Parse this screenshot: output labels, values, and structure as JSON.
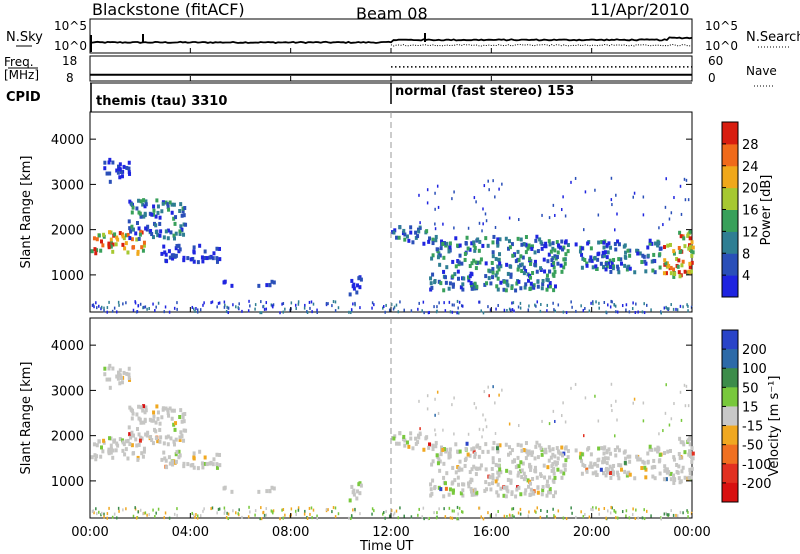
{
  "header": {
    "radar": "Blackstone (fitACF)",
    "beam": "Beam 08",
    "date": "11/Apr/2010"
  },
  "chart_data": [
    {
      "type": "line",
      "panel": "noise",
      "left_axis": {
        "label": "N.Sky",
        "ticks": [
          "10^5",
          "10^0"
        ]
      },
      "right_axis": {
        "label": "N.Search",
        "ticks": [
          "10^5",
          "10^0"
        ]
      },
      "x_ticks": [
        "00:00",
        "04:00",
        "08:00",
        "12:00",
        "16:00",
        "20:00",
        "00:00"
      ],
      "x_range_hours": [
        0,
        24
      ]
    },
    {
      "type": "line",
      "panel": "frequency",
      "left_axis": {
        "label_lines": [
          "Freq.",
          "[MHz]"
        ],
        "ticks": [
          "18",
          "8"
        ],
        "range": [
          8,
          18
        ]
      },
      "right_axis": {
        "label": "Nave",
        "ticks": [
          "60",
          "0"
        ],
        "range": [
          0,
          60
        ]
      },
      "freq_mhz": 10.5,
      "nave_segments": [
        {
          "from_hour": 0,
          "to_hour": 12,
          "value": 15
        },
        {
          "from_hour": 12,
          "to_hour": 24,
          "value": 34
        }
      ]
    },
    {
      "type": "table",
      "panel": "cpid",
      "label": "CPID",
      "segments": [
        {
          "start_hour": 0,
          "text": "themis (tau) 3310"
        },
        {
          "start_hour": 12,
          "text": "normal (fast stereo) 153"
        }
      ]
    },
    {
      "type": "heatmap",
      "panel": "power",
      "xlabel": "",
      "ylabel": "Slant Range [km]",
      "ylim": [
        180,
        4600
      ],
      "yticks": [
        1000,
        2000,
        3000,
        4000
      ],
      "xlim": [
        0,
        24
      ],
      "colorbar": {
        "label": "Power [dB]",
        "ticks": [
          4,
          8,
          12,
          16,
          20,
          24,
          28
        ],
        "colors": [
          "#1f24e0",
          "#2a4fb8",
          "#2f7e93",
          "#38a05a",
          "#a6c831",
          "#f0a81b",
          "#f06a1a",
          "#d81d0f"
        ]
      },
      "echo_regions": [
        {
          "t0": 0.0,
          "t1": 2.2,
          "r0": 1500,
          "r1": 2000,
          "level": "strong"
        },
        {
          "t0": 1.5,
          "t1": 3.8,
          "r0": 1800,
          "r1": 2700,
          "level": "medium"
        },
        {
          "t0": 0.5,
          "t1": 1.6,
          "r0": 3100,
          "r1": 3600,
          "level": "weak"
        },
        {
          "t0": 2.8,
          "t1": 5.2,
          "r0": 1300,
          "r1": 1700,
          "level": "weak"
        },
        {
          "t0": 5.2,
          "t1": 7.5,
          "r0": 800,
          "r1": 900,
          "level": "weak"
        },
        {
          "t0": 10.2,
          "t1": 10.8,
          "r0": 600,
          "r1": 1000,
          "level": "weak"
        },
        {
          "t0": 12.0,
          "t1": 13.5,
          "r0": 1700,
          "r1": 2100,
          "level": "medium"
        },
        {
          "t0": 13.5,
          "t1": 18.5,
          "r0": 700,
          "r1": 1900,
          "level": "medium"
        },
        {
          "t0": 18.5,
          "t1": 22.8,
          "r0": 1100,
          "r1": 1800,
          "level": "medium"
        },
        {
          "t0": 22.8,
          "t1": 24.0,
          "r0": 900,
          "r1": 2000,
          "level": "strong"
        },
        {
          "t0": 12.5,
          "t1": 24.0,
          "r0": 2000,
          "r1": 3200,
          "level": "sparse"
        }
      ]
    },
    {
      "type": "heatmap",
      "panel": "velocity",
      "xlabel": "Time UT",
      "ylabel": "Slant Range [km]",
      "ylim": [
        180,
        4600
      ],
      "yticks": [
        1000,
        2000,
        3000,
        4000
      ],
      "xlim": [
        0,
        24
      ],
      "colorbar": {
        "label": "Velocity [m s⁻¹]",
        "ticks": [
          "200",
          "100",
          "50",
          "15",
          "-15",
          "-50",
          "-100",
          "-200"
        ],
        "colors": [
          "#2a44c8",
          "#2d6aa8",
          "#3c8c4a",
          "#78c83c",
          "#c8c8c8",
          "#f0a820",
          "#f07020",
          "#e23020",
          "#d81010"
        ]
      },
      "dominant_color": "#c6c6c4"
    }
  ]
}
